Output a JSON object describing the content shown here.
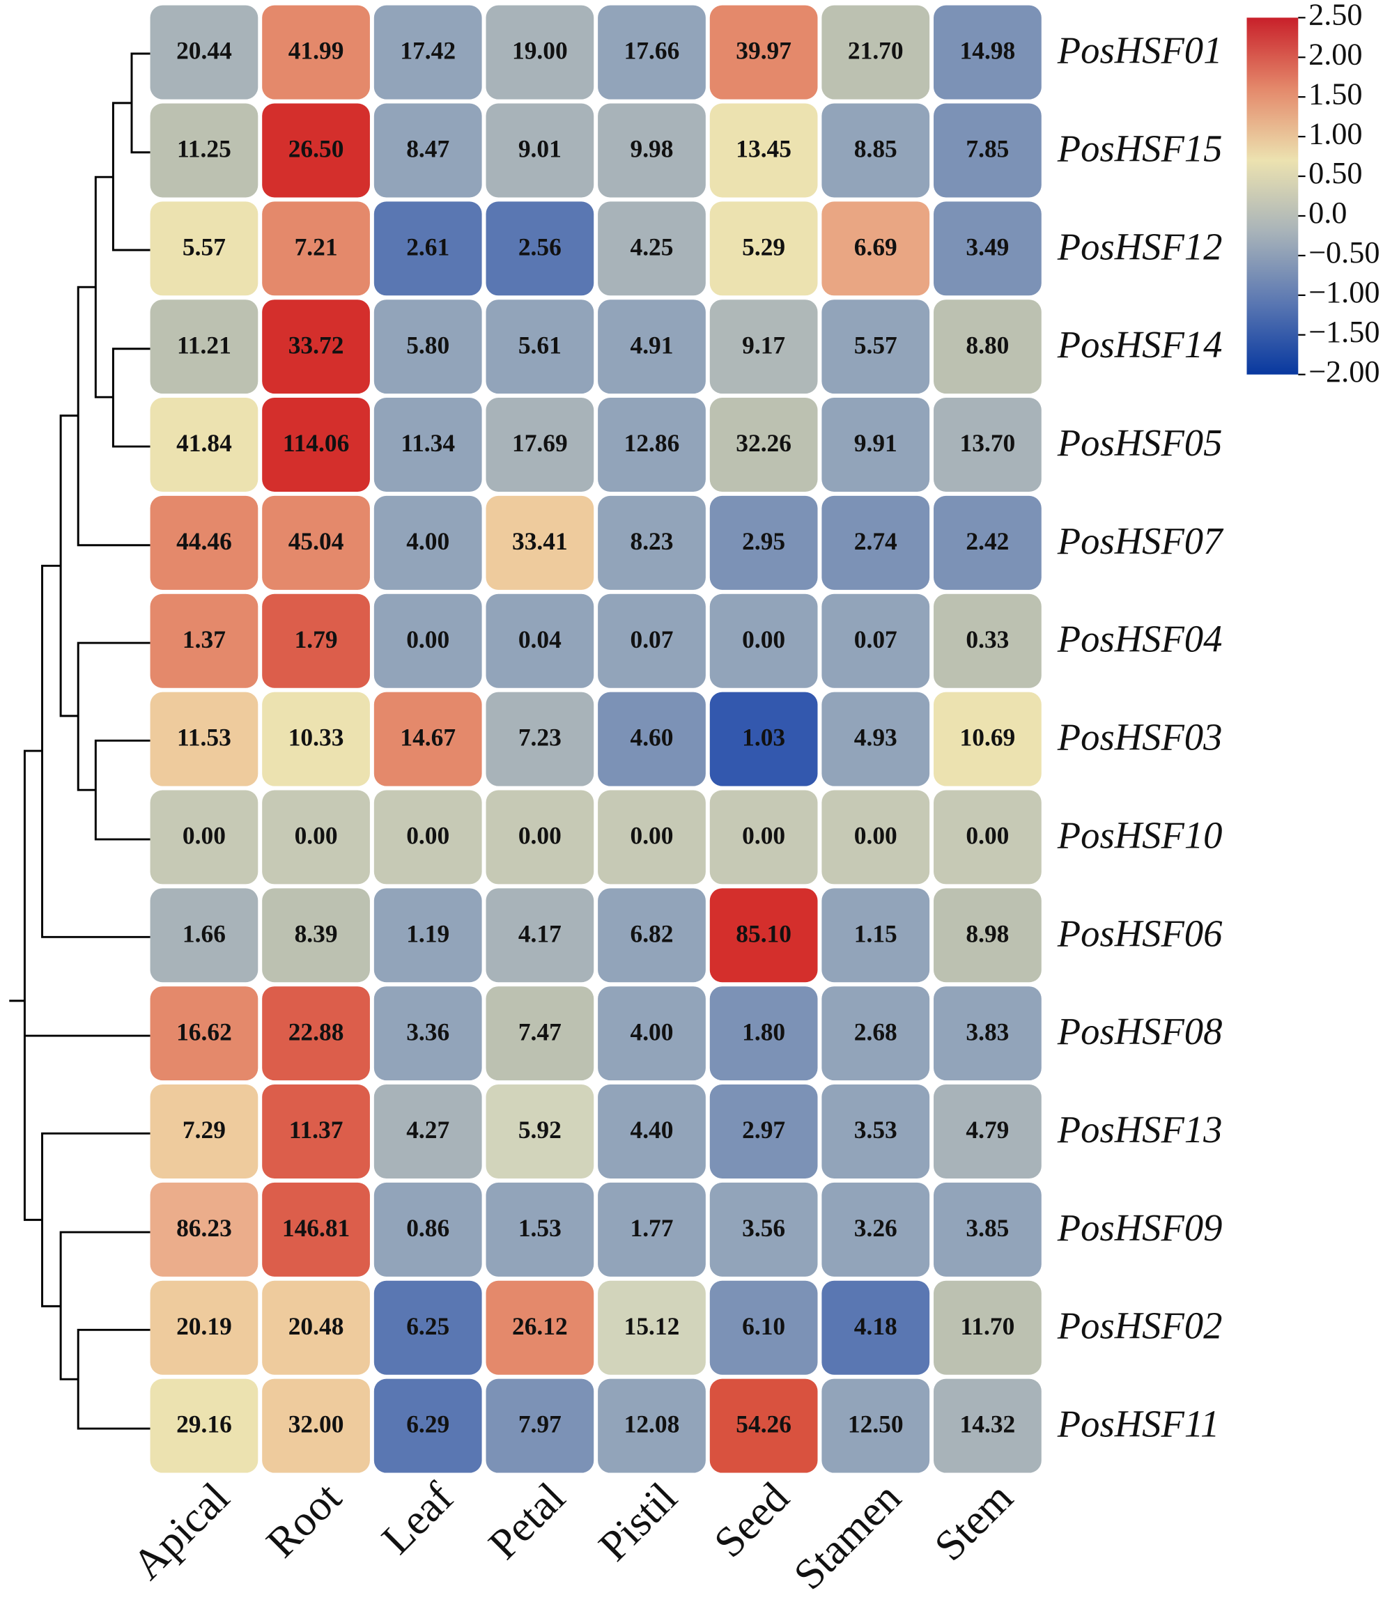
{
  "chart_data": {
    "type": "heatmap",
    "x": [
      "Apical",
      "Root",
      "Leaf",
      "Petal",
      "Pistil",
      "Seed",
      "Stamen",
      "Stem"
    ],
    "y": [
      "PosHSF01",
      "PosHSF15",
      "PosHSF12",
      "PosHSF14",
      "PosHSF05",
      "PosHSF07",
      "PosHSF04",
      "PosHSF03",
      "PosHSF10",
      "PosHSF06",
      "PosHSF08",
      "PosHSF13",
      "PosHSF09",
      "PosHSF02",
      "PosHSF11"
    ],
    "values": [
      [
        20.44,
        41.99,
        17.42,
        19,
        17.66,
        39.97,
        21.7,
        14.98
      ],
      [
        11.25,
        26.5,
        8.47,
        9.01,
        9.98,
        13.45,
        8.85,
        7.85
      ],
      [
        5.57,
        7.21,
        2.61,
        2.56,
        4.25,
        5.29,
        6.69,
        3.49
      ],
      [
        11.21,
        33.72,
        5.8,
        5.61,
        4.91,
        9.17,
        5.57,
        8.8
      ],
      [
        41.84,
        114.06,
        11.34,
        17.69,
        12.86,
        32.26,
        9.91,
        13.7
      ],
      [
        44.46,
        45.04,
        4,
        33.41,
        8.23,
        2.95,
        2.74,
        2.42
      ],
      [
        1.37,
        1.79,
        0,
        0.04,
        0.07,
        0,
        0.07,
        0.33
      ],
      [
        11.53,
        10.33,
        14.67,
        7.23,
        4.6,
        1.03,
        4.93,
        10.69
      ],
      [
        0,
        0,
        0,
        0,
        0,
        0,
        0,
        0
      ],
      [
        1.66,
        8.39,
        1.19,
        4.17,
        6.82,
        85.1,
        1.15,
        8.98
      ],
      [
        16.62,
        22.88,
        3.36,
        7.47,
        4,
        1.8,
        2.68,
        3.83
      ],
      [
        7.29,
        11.37,
        4.27,
        5.92,
        4.4,
        2.97,
        3.53,
        4.79
      ],
      [
        86.23,
        146.81,
        0.86,
        1.53,
        1.77,
        3.56,
        3.26,
        3.85
      ],
      [
        20.19,
        20.48,
        6.25,
        26.12,
        15.12,
        6.1,
        4.18,
        11.7
      ],
      [
        29.16,
        32,
        6.29,
        7.97,
        12.08,
        54.26,
        12.5,
        14.32
      ]
    ],
    "value_labels": [
      [
        "20.44",
        "41.99",
        "17.42",
        "19.00",
        "17.66",
        "39.97",
        "21.70",
        "14.98"
      ],
      [
        "11.25",
        "26.50",
        "8.47",
        "9.01",
        "9.98",
        "13.45",
        "8.85",
        "7.85"
      ],
      [
        "5.57",
        "7.21",
        "2.61",
        "2.56",
        "4.25",
        "5.29",
        "6.69",
        "3.49"
      ],
      [
        "11.21",
        "33.72",
        "5.80",
        "5.61",
        "4.91",
        "9.17",
        "5.57",
        "8.80"
      ],
      [
        "41.84",
        "114.06",
        "11.34",
        "17.69",
        "12.86",
        "32.26",
        "9.91",
        "13.70"
      ],
      [
        "44.46",
        "45.04",
        "4.00",
        "33.41",
        "8.23",
        "2.95",
        "2.74",
        "2.42"
      ],
      [
        "1.37",
        "1.79",
        "0.00",
        "0.04",
        "0.07",
        "0.00",
        "0.07",
        "0.33"
      ],
      [
        "11.53",
        "10.33",
        "14.67",
        "7.23",
        "4.60",
        "1.03",
        "4.93",
        "10.69"
      ],
      [
        "0.00",
        "0.00",
        "0.00",
        "0.00",
        "0.00",
        "0.00",
        "0.00",
        "0.00"
      ],
      [
        "1.66",
        "8.39",
        "1.19",
        "4.17",
        "6.82",
        "85.10",
        "1.15",
        "8.98"
      ],
      [
        "16.62",
        "22.88",
        "3.36",
        "7.47",
        "4.00",
        "1.80",
        "2.68",
        "3.83"
      ],
      [
        "7.29",
        "11.37",
        "4.27",
        "5.92",
        "4.40",
        "2.97",
        "3.53",
        "4.79"
      ],
      [
        "86.23",
        "146.81",
        "0.86",
        "1.53",
        "1.77",
        "3.56",
        "3.26",
        "3.85"
      ],
      [
        "20.19",
        "20.48",
        "6.25",
        "26.12",
        "15.12",
        "6.10",
        "4.18",
        "11.70"
      ],
      [
        "29.16",
        "32.00",
        "6.29",
        "7.97",
        "12.08",
        "54.26",
        "12.50",
        "14.32"
      ]
    ],
    "colors": [
      [
        "#a8b3b9",
        "#e4896b",
        "#92a4ba",
        "#a8b3b9",
        "#92a4ba",
        "#e4896b",
        "#bcc1b1",
        "#7c92b6"
      ],
      [
        "#bcc1b1",
        "#d42f2c",
        "#92a4ba",
        "#a8b3b9",
        "#a8b3b9",
        "#ece2b0",
        "#92a4ba",
        "#7c92b6"
      ],
      [
        "#ece2b0",
        "#e4896b",
        "#5a77b2",
        "#5a77b2",
        "#a8b3b9",
        "#ece2b0",
        "#e9a683",
        "#7c92b6"
      ],
      [
        "#bcc1b1",
        "#d42f2c",
        "#92a4ba",
        "#92a4ba",
        "#92a4ba",
        "#afb8b8",
        "#92a4ba",
        "#bcc1b1"
      ],
      [
        "#ece2b0",
        "#d42f2c",
        "#92a4ba",
        "#a8b3b9",
        "#92a4ba",
        "#bcc1b1",
        "#92a4ba",
        "#a8b3b9"
      ],
      [
        "#e4896b",
        "#e4896b",
        "#92a4ba",
        "#eecb9d",
        "#92a4ba",
        "#7c92b6",
        "#7c92b6",
        "#7c92b6"
      ],
      [
        "#e4896b",
        "#dc5e4b",
        "#92a4ba",
        "#92a4ba",
        "#92a4ba",
        "#92a4ba",
        "#92a4ba",
        "#bcc1b1"
      ],
      [
        "#eecb9d",
        "#ece2b0",
        "#e4896b",
        "#a8b3b9",
        "#7c92b6",
        "#3358ae",
        "#92a4ba",
        "#ece2b0"
      ],
      [
        "#c6c9b5",
        "#c6c9b5",
        "#c6c9b5",
        "#c6c9b5",
        "#c6c9b5",
        "#c6c9b5",
        "#c6c9b5",
        "#c6c9b5"
      ],
      [
        "#a8b3b9",
        "#bcc1b1",
        "#92a4ba",
        "#a8b3b9",
        "#92a4ba",
        "#d42f2c",
        "#92a4ba",
        "#bcc1b1"
      ],
      [
        "#e4896b",
        "#dc5e4b",
        "#92a4ba",
        "#bcc1b1",
        "#92a4ba",
        "#7c92b6",
        "#92a4ba",
        "#92a4ba"
      ],
      [
        "#eecb9d",
        "#dc5e4b",
        "#a8b3b9",
        "#d2d4bb",
        "#92a4ba",
        "#7c92b6",
        "#92a4ba",
        "#a8b3b9"
      ],
      [
        "#ebad8b",
        "#dc5e4b",
        "#92a4ba",
        "#92a4ba",
        "#92a4ba",
        "#92a4ba",
        "#92a4ba",
        "#92a4ba"
      ],
      [
        "#eecb9d",
        "#eecb9d",
        "#5a77b2",
        "#e4896b",
        "#d2d4bb",
        "#7c92b6",
        "#5a77b2",
        "#bcc1b1"
      ],
      [
        "#ece2b0",
        "#eecb9d",
        "#5a77b2",
        "#7c92b6",
        "#92a4ba",
        "#d9523f",
        "#92a4ba",
        "#a8b3b9"
      ]
    ],
    "colorbar": {
      "ylim": [
        -2,
        2.5
      ],
      "colors": [
        "#08389f",
        "#5a77b2",
        "#a8b3b9",
        "#ece2b0",
        "#e4896b",
        "#c8202a"
      ],
      "yticks": [
        {
          "value": 2.5,
          "label": "2.50"
        },
        {
          "value": 2,
          "label": "2.00"
        },
        {
          "value": 1.5,
          "label": "1.50"
        },
        {
          "value": 1,
          "label": "1.00"
        },
        {
          "value": 0.5,
          "label": "0.50"
        },
        {
          "value": 0,
          "label": "0.0"
        },
        {
          "value": -0.5,
          "label": "−0.50"
        },
        {
          "value": -1,
          "label": "−1.00"
        },
        {
          "value": -1.5,
          "label": "−1.50"
        },
        {
          "value": -2,
          "label": "−2.00"
        }
      ]
    }
  }
}
